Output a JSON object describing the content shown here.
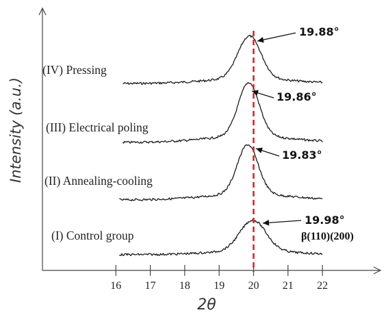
{
  "chart_data": {
    "type": "line",
    "title": "",
    "xlabel": "2θ",
    "ylabel": "Intensity (a.u.)",
    "xlim": [
      15,
      23
    ],
    "x_ticks": [
      16,
      17,
      18,
      19,
      20,
      21,
      22
    ],
    "series": [
      {
        "name": "(IV) Pressing",
        "peak_label": "19.88°",
        "x_range": [
          16.2,
          22
        ],
        "peak_x": 19.88,
        "peak_height": 0.62,
        "width": 0.33
      },
      {
        "name": "(III) Electrical poling",
        "peak_label": "19.86°",
        "x_range": [
          16.2,
          22
        ],
        "peak_x": 19.86,
        "peak_height": 0.78,
        "width": 0.3
      },
      {
        "name": "(II) Annealing-cooling",
        "peak_label": "19.83°",
        "x_range": [
          16.1,
          22
        ],
        "peak_x": 19.83,
        "peak_height": 0.72,
        "width": 0.3
      },
      {
        "name": "(I) Control group",
        "peak_label": "19.98°",
        "x_range": [
          16.1,
          22
        ],
        "peak_x": 19.98,
        "peak_height": 0.45,
        "width": 0.38
      }
    ],
    "reference_line": {
      "x": 20,
      "color": "#e02020",
      "style": "dashed"
    },
    "annotations": [
      "β(110)(200)"
    ],
    "grid": false,
    "legend": "none"
  }
}
